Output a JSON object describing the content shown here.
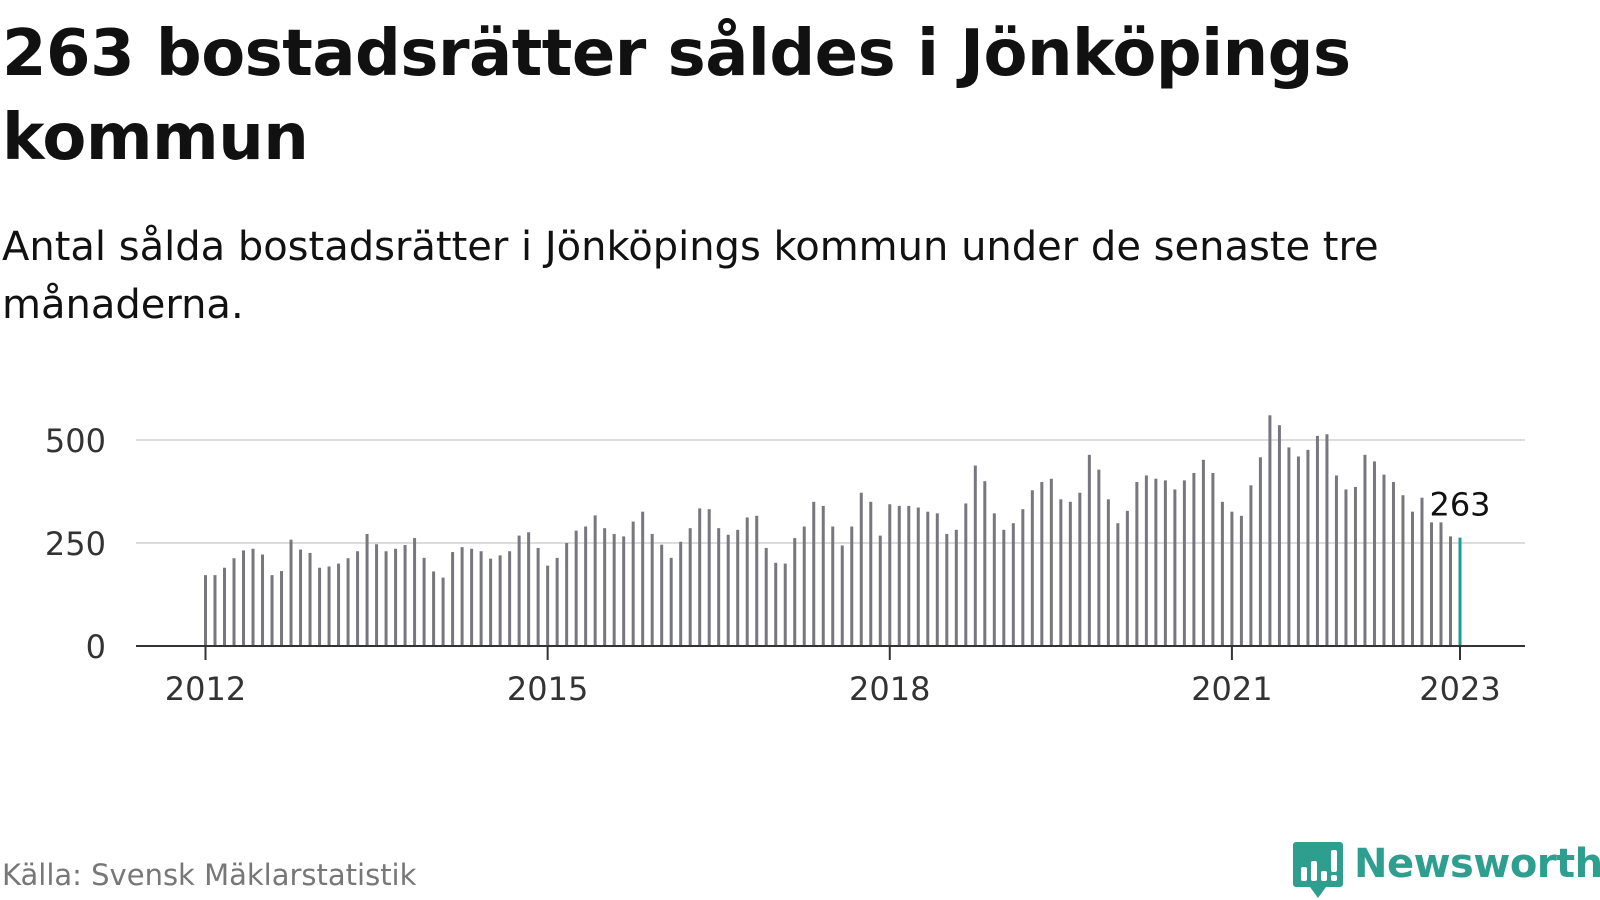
{
  "header": {
    "title": "263 bostadsrätter såldes i Jönköpings kommun",
    "subtitle": "Antal sålda bostadsrätter i Jönköpings kommun under de senaste tre månaderna."
  },
  "footer": {
    "source": "Källa: Svensk Mäklarstatistik",
    "brand": "Newsworthy"
  },
  "colors": {
    "bar": "#77777d",
    "highlight": "#1a9e92",
    "grid": "#dddddd",
    "axis": "#333333",
    "brand": "#2e9e8f"
  },
  "chart_data": {
    "type": "bar",
    "title": "263 bostadsrätter såldes i Jönköpings kommun",
    "subtitle": "Antal sålda bostadsrätter i Jönköpings kommun under de senaste tre månaderna.",
    "xlabel": "",
    "ylabel": "",
    "ylim": [
      0,
      560
    ],
    "yticks": [
      0,
      250,
      500
    ],
    "xticks": [
      "2012",
      "2015",
      "2018",
      "2021",
      "2023"
    ],
    "grid": true,
    "legend": "none",
    "highlight_label": "263",
    "values": [
      172,
      172,
      190,
      213,
      232,
      236,
      222,
      172,
      182,
      258,
      234,
      226,
      190,
      193,
      200,
      213,
      230,
      272,
      247,
      230,
      236,
      245,
      262,
      214,
      181,
      166,
      228,
      240,
      236,
      230,
      212,
      220,
      230,
      268,
      276,
      238,
      195,
      214,
      250,
      280,
      290,
      317,
      286,
      272,
      266,
      302,
      326,
      272,
      246,
      214,
      253,
      286,
      334,
      332,
      286,
      270,
      282,
      312,
      316,
      238,
      202,
      200,
      262,
      290,
      350,
      340,
      290,
      244,
      290,
      372,
      350,
      268,
      344,
      340,
      340,
      336,
      326,
      322,
      272,
      282,
      346,
      438,
      400,
      322,
      282,
      298,
      332,
      378,
      398,
      406,
      356,
      350,
      372,
      464,
      428,
      356,
      298,
      328,
      398,
      414,
      406,
      402,
      380,
      402,
      420,
      452,
      420,
      350,
      326,
      316,
      390,
      458,
      560,
      536,
      482,
      460,
      476,
      510,
      514,
      414,
      380,
      386,
      464,
      448,
      416,
      398,
      366,
      326,
      360,
      300,
      300,
      266,
      263
    ],
    "series": [
      {
        "name": "",
        "values": []
      }
    ]
  }
}
